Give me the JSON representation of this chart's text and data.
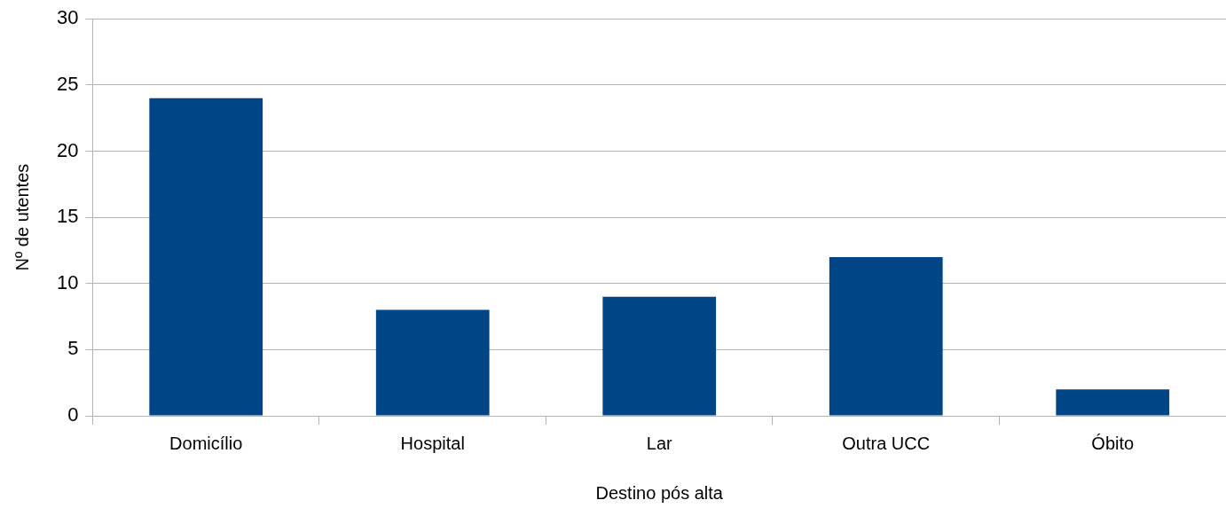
{
  "chart_data": {
    "type": "bar",
    "xlabel": "Destino pós alta",
    "ylabel": "Nº de utentes",
    "categories": [
      "Domicílio",
      "Hospital",
      "Lar",
      "Outra UCC",
      "Óbito"
    ],
    "values": [
      24,
      8,
      9,
      12,
      2
    ],
    "color": "#004586",
    "ylim": [
      0,
      30
    ],
    "yticks": [
      0,
      5,
      10,
      15,
      20,
      25,
      30
    ],
    "grid": "y",
    "legend": false
  }
}
